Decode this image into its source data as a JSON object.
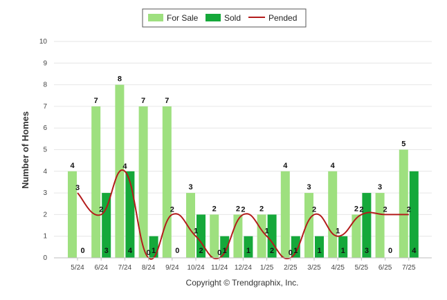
{
  "chart_data": {
    "type": "bar",
    "title": "",
    "xlabel": "",
    "ylabel": "Number of Homes",
    "ylim": [
      0,
      10
    ],
    "yticks": [
      "0",
      "1",
      "2",
      "3",
      "4",
      "5",
      "6",
      "7",
      "8",
      "9",
      "10"
    ],
    "categories": [
      "5/24",
      "6/24",
      "7/24",
      "8/24",
      "9/24",
      "10/24",
      "11/24",
      "12/24",
      "1/25",
      "2/25",
      "3/25",
      "4/25",
      "5/25",
      "6/25",
      "7/25"
    ],
    "series": [
      {
        "name": "For Sale",
        "type": "bar",
        "color": "#9ee07f",
        "values": [
          4,
          7,
          8,
          7,
          7,
          3,
          2,
          2,
          2,
          4,
          3,
          4,
          2,
          3,
          5
        ]
      },
      {
        "name": "Sold",
        "type": "bar",
        "color": "#15a83a",
        "values": [
          0,
          3,
          4,
          1,
          0,
          2,
          1,
          1,
          2,
          1,
          1,
          1,
          3,
          0,
          4
        ]
      },
      {
        "name": "Pended",
        "type": "line",
        "color": "#b31b1b",
        "values": [
          3,
          2,
          4,
          0,
          2,
          1,
          0,
          2,
          1,
          0,
          2,
          1,
          2,
          2,
          2
        ]
      }
    ],
    "grid": true,
    "legend_position": "top-center",
    "credit": "Copyright © Trendgraphix, Inc."
  }
}
